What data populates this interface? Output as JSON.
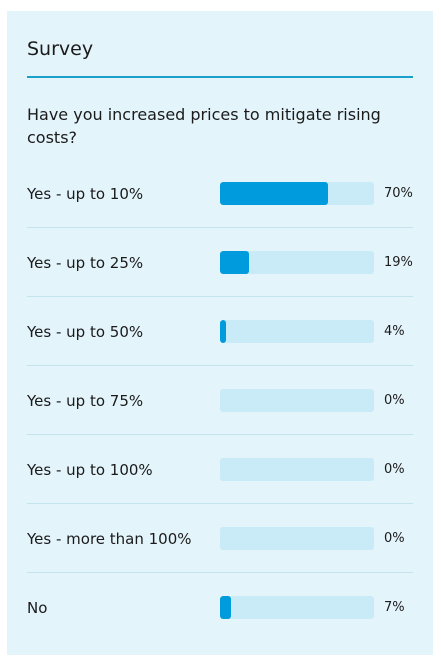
{
  "survey": {
    "title": "Survey",
    "question": "Have you increased prices to mitigate rising costs?",
    "options": [
      {
        "label": "Yes - up to 10%",
        "percent_label": "70%",
        "percent": 70
      },
      {
        "label": "Yes - up to 25%",
        "percent_label": "19%",
        "percent": 19
      },
      {
        "label": "Yes - up to 50%",
        "percent_label": "4%",
        "percent": 4
      },
      {
        "label": "Yes - up to 75%",
        "percent_label": "0%",
        "percent": 0
      },
      {
        "label": "Yes - up to 100%",
        "percent_label": "0%",
        "percent": 0
      },
      {
        "label": "Yes - more than 100%",
        "percent_label": "0%",
        "percent": 0
      },
      {
        "label": "No",
        "percent_label": "7%",
        "percent": 7
      }
    ]
  },
  "colors": {
    "card_background": "#e3f4fb",
    "accent_rule": "#1aa1c9",
    "bar_fill": "#009bdc",
    "bar_track": "#c9eaf7"
  }
}
